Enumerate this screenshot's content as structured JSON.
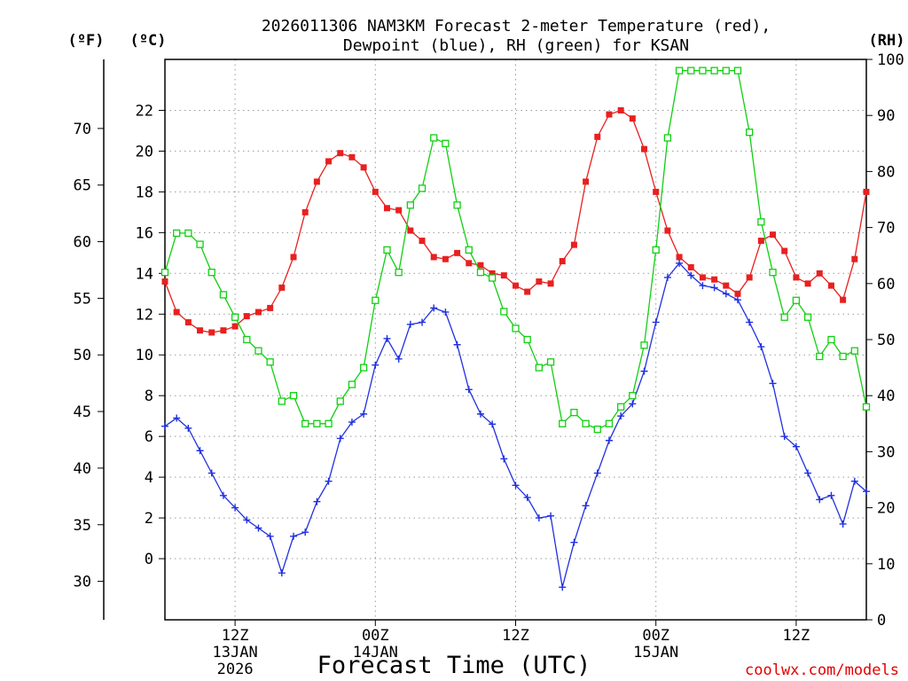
{
  "chart_data": {
    "type": "line",
    "title_line1": "2026011306 NAM3KM Forecast 2-meter Temperature (red),",
    "title_line2": "Dewpoint (blue), RH (green) for KSAN",
    "xlabel": "Forecast Time (UTC)",
    "credit": "coolwx.com/models",
    "units": {
      "fahrenheit": "(ºF)",
      "celsius": "(ºC)",
      "rh": "(RH)"
    },
    "x_range_hours": [
      6,
      66
    ],
    "x_ticks": [
      {
        "hour": 12,
        "line1": "12Z",
        "line2": "13JAN",
        "line3": "2026"
      },
      {
        "hour": 24,
        "line1": "00Z",
        "line2": "14JAN",
        "line3": ""
      },
      {
        "hour": 36,
        "line1": "12Z",
        "line2": "",
        "line3": ""
      },
      {
        "hour": 48,
        "line1": "00Z",
        "line2": "15JAN",
        "line3": ""
      },
      {
        "hour": 60,
        "line1": "12Z",
        "line2": "",
        "line3": ""
      }
    ],
    "celsius_axis": {
      "range": [
        -3,
        24.5
      ],
      "ticks": [
        0,
        2,
        4,
        6,
        8,
        10,
        12,
        14,
        16,
        18,
        20,
        22
      ]
    },
    "fahrenheit_axis": {
      "ticks": [
        30,
        35,
        40,
        45,
        50,
        55,
        60,
        65,
        70
      ]
    },
    "rh_axis": {
      "range": [
        0,
        100
      ],
      "ticks": [
        0,
        10,
        20,
        30,
        40,
        50,
        60,
        70,
        80,
        90,
        100
      ]
    },
    "series": [
      {
        "name": "2-meter Temperature",
        "unit": "C",
        "color": "#e82020",
        "marker": "filled-square",
        "values": [
          13.6,
          12.1,
          11.6,
          11.2,
          11.1,
          11.2,
          11.4,
          11.9,
          12.1,
          12.3,
          13.3,
          14.8,
          17.0,
          18.5,
          19.5,
          19.9,
          19.7,
          19.2,
          18.0,
          17.2,
          17.1,
          16.1,
          15.6,
          14.8,
          14.7,
          15.0,
          14.5,
          14.4,
          14.0,
          13.9,
          13.4,
          13.1,
          13.6,
          13.5,
          14.6,
          15.4,
          18.5,
          20.7,
          21.8,
          22.0,
          21.6,
          20.1,
          18.0,
          16.1,
          14.8,
          14.3,
          13.8,
          13.7,
          13.4,
          13.0,
          13.8,
          15.6,
          15.9,
          15.1,
          13.8,
          13.5,
          14.0,
          13.4,
          12.7,
          14.7,
          18.0
        ]
      },
      {
        "name": "Dewpoint",
        "unit": "C",
        "color": "#2030e0",
        "marker": "plus",
        "values": [
          6.5,
          6.9,
          6.4,
          5.3,
          4.2,
          3.1,
          2.5,
          1.9,
          1.5,
          1.1,
          -0.7,
          1.1,
          1.3,
          2.8,
          3.8,
          5.9,
          6.7,
          7.1,
          9.5,
          10.8,
          9.8,
          11.5,
          11.6,
          12.3,
          12.1,
          10.5,
          8.3,
          7.1,
          6.6,
          4.9,
          3.6,
          3.0,
          2.0,
          2.1,
          -1.4,
          0.8,
          2.6,
          4.2,
          5.8,
          7.0,
          7.6,
          9.2,
          11.6,
          13.8,
          14.5,
          13.9,
          13.4,
          13.3,
          13.0,
          12.7,
          11.6,
          10.4,
          8.6,
          6.0,
          5.5,
          4.2,
          2.9,
          3.1,
          1.7,
          3.8,
          3.3
        ]
      },
      {
        "name": "RH",
        "unit": "%",
        "color": "#10d010",
        "marker": "open-square",
        "values": [
          62,
          69,
          69,
          67,
          62,
          58,
          54,
          50,
          48,
          46,
          39,
          40,
          35,
          35,
          35,
          39,
          42,
          45,
          57,
          66,
          62,
          74,
          77,
          86,
          85,
          74,
          66,
          62,
          61,
          55,
          52,
          50,
          45,
          46,
          35,
          37,
          35,
          34,
          35,
          38,
          40,
          49,
          66,
          86,
          98,
          98,
          98,
          98,
          98,
          98,
          87,
          71,
          62,
          54,
          57,
          54,
          47,
          50,
          47,
          48,
          38
        ]
      }
    ]
  }
}
